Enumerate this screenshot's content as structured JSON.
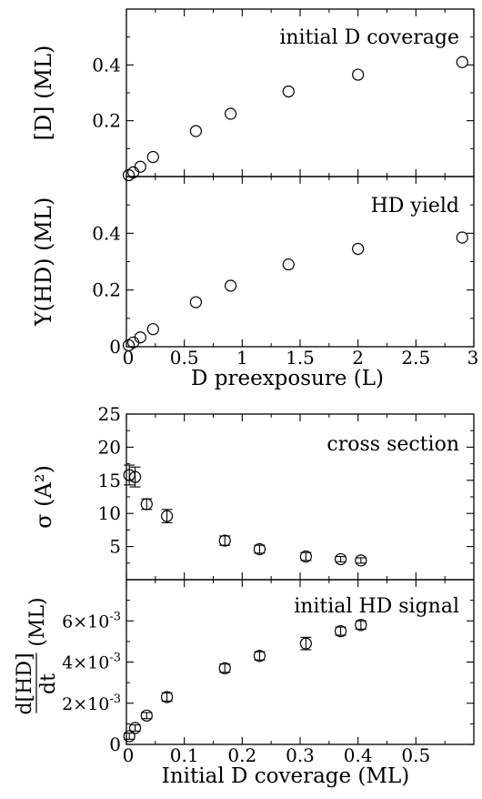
{
  "chart_data": [
    {
      "type": "scatter",
      "title": "initial D coverage",
      "xlabel": "",
      "ylabel": "[D] (ML)",
      "xlim": [
        0,
        3
      ],
      "ylim": [
        0,
        0.6
      ],
      "yticks": [
        "0.2",
        "0.4"
      ],
      "x": [
        0.02,
        0.06,
        0.12,
        0.23,
        0.6,
        0.9,
        1.4,
        2.0,
        2.9
      ],
      "y": [
        0.005,
        0.015,
        0.035,
        0.07,
        0.163,
        0.225,
        0.305,
        0.365,
        0.41
      ]
    },
    {
      "type": "scatter",
      "title": "HD yield",
      "xlabel": "D preexposure (L)",
      "ylabel": "Y(HD) (ML)",
      "xlim": [
        0,
        3
      ],
      "ylim": [
        0,
        0.6
      ],
      "xticks": [
        "0",
        "0.5",
        "1",
        "1.5",
        "2",
        "2.5",
        "3"
      ],
      "yticks": [
        "0",
        "0.2",
        "0.4"
      ],
      "x": [
        0.02,
        0.06,
        0.12,
        0.23,
        0.6,
        0.9,
        1.4,
        2.0,
        2.9
      ],
      "y": [
        0.005,
        0.015,
        0.033,
        0.062,
        0.157,
        0.215,
        0.29,
        0.345,
        0.385
      ]
    },
    {
      "type": "scatter",
      "title": "cross section",
      "xlabel": "",
      "ylabel": "σ (A²)",
      "xlim": [
        0,
        0.6
      ],
      "ylim": [
        0,
        25
      ],
      "yticks": [
        "5",
        "10",
        "15",
        "20",
        "25"
      ],
      "x": [
        0.005,
        0.015,
        0.035,
        0.07,
        0.17,
        0.23,
        0.31,
        0.37,
        0.405
      ],
      "y": [
        15.8,
        15.5,
        11.4,
        9.6,
        5.9,
        4.6,
        3.5,
        3.1,
        2.9
      ],
      "yerr": [
        1.5,
        1.5,
        0.8,
        1.0,
        0.7,
        0.6,
        0.6,
        0.4,
        0.4
      ]
    },
    {
      "type": "scatter",
      "title": "initial HD signal",
      "xlabel": "Initial D coverage (ML)",
      "ylabel_num": "d[HD]",
      "ylabel_den": "dt",
      "ylabel_unit": "(ML)",
      "xlim": [
        0,
        0.6
      ],
      "ylim": [
        0,
        0.008
      ],
      "xticks": [
        "0",
        "0.1",
        "0.2",
        "0.3",
        "0.4",
        "0.5"
      ],
      "yticks": [
        {
          "value": 0,
          "mantissa": "0",
          "exp": ""
        },
        {
          "value": 0.002,
          "mantissa": "2×10",
          "exp": "-3"
        },
        {
          "value": 0.004,
          "mantissa": "4×10",
          "exp": "-3"
        },
        {
          "value": 0.006,
          "mantissa": "6×10",
          "exp": "-3"
        }
      ],
      "x": [
        0.005,
        0.015,
        0.035,
        0.07,
        0.17,
        0.23,
        0.31,
        0.37,
        0.405
      ],
      "y": [
        0.0004,
        0.0008,
        0.0014,
        0.0023,
        0.0037,
        0.0043,
        0.0049,
        0.0055,
        0.0058
      ],
      "yerr": [
        0.00015,
        0.00015,
        0.00015,
        0.0002,
        0.0002,
        0.0002,
        0.0003,
        0.0002,
        0.0002
      ]
    }
  ]
}
